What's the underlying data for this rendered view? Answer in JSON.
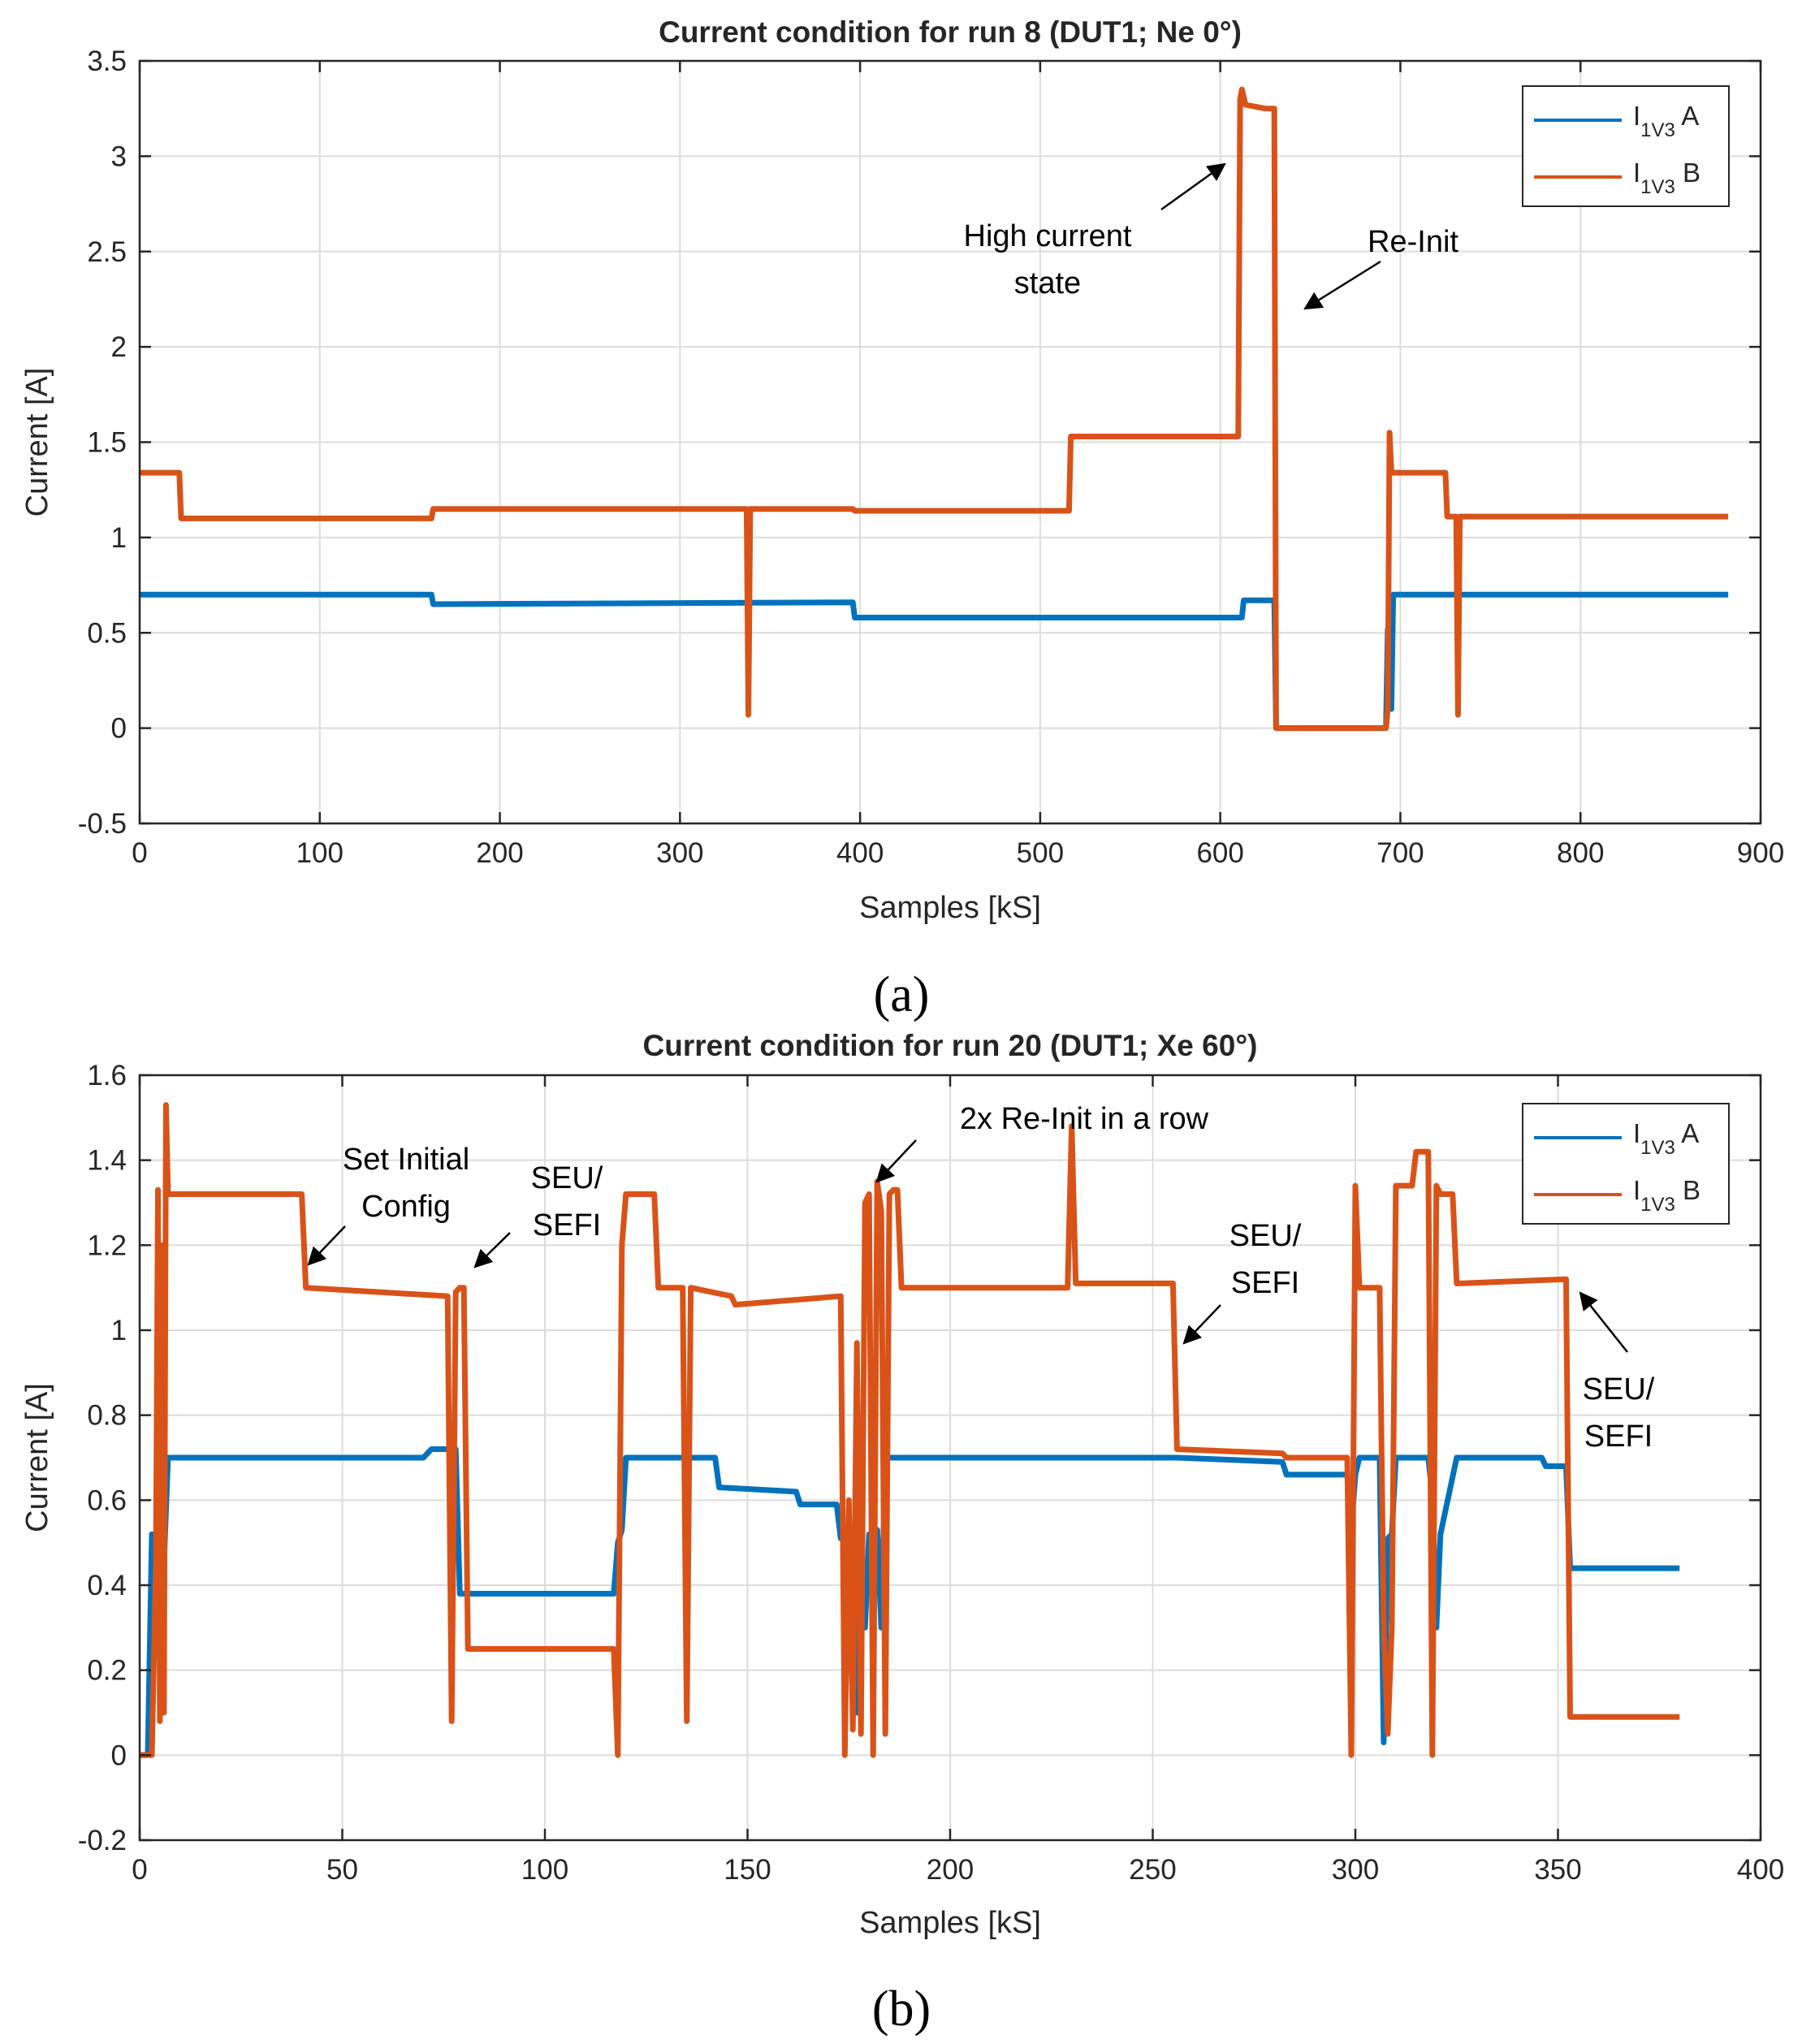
{
  "colors": {
    "series_a": "#0072BD",
    "series_b": "#D95319",
    "grid": "#dcdcdc",
    "axes": "#262626"
  },
  "chart_data": [
    {
      "panel_label": "(a)",
      "type": "line",
      "title": "Current condition for run 8 (DUT1; Ne 0°)",
      "xlabel": "Samples [kS]",
      "ylabel": "Current [A]",
      "xlim": [
        0,
        900
      ],
      "ylim": [
        -0.5,
        3.5
      ],
      "xticks": [
        0,
        100,
        200,
        300,
        400,
        500,
        600,
        700,
        800,
        900
      ],
      "yticks": [
        -0.5,
        0,
        0.5,
        1,
        1.5,
        2,
        2.5,
        3,
        3.5
      ],
      "ytick_labels": [
        "-0.5",
        "0",
        "0.5",
        "1",
        "1.5",
        "2",
        "2.5",
        "3",
        "3.5"
      ],
      "grid": true,
      "legend_position": "top-right",
      "series": [
        {
          "name": "I1V3 A",
          "legend_main": "I",
          "legend_sub": "1V3",
          "legend_suffix": " A",
          "color": "#0072BD",
          "x": [
            0,
            162,
            163,
            396,
            397,
            612,
            613,
            630,
            631,
            692,
            693,
            695,
            696,
            882
          ],
          "y": [
            0.7,
            0.7,
            0.65,
            0.66,
            0.58,
            0.58,
            0.67,
            0.67,
            0.0,
            0.0,
            0.52,
            0.1,
            0.7,
            0.7
          ]
        },
        {
          "name": "I1V3 B",
          "legend_main": "I",
          "legend_sub": "1V3",
          "legend_suffix": " B",
          "color": "#D95319",
          "x": [
            0,
            22,
            23,
            162,
            163,
            337,
            338,
            339,
            396,
            397,
            516,
            517,
            610,
            611,
            612,
            614,
            625,
            630,
            631,
            692,
            693,
            694,
            695,
            696,
            725,
            726,
            731,
            732,
            733,
            882
          ],
          "y": [
            1.34,
            1.34,
            1.1,
            1.1,
            1.15,
            1.15,
            0.07,
            1.15,
            1.15,
            1.14,
            1.14,
            1.53,
            1.53,
            3.3,
            3.35,
            3.27,
            3.25,
            3.25,
            0.0,
            0.0,
            0.1,
            1.55,
            1.34,
            1.34,
            1.34,
            1.11,
            1.11,
            0.07,
            1.11,
            1.11
          ]
        }
      ],
      "annotations": [
        {
          "lines": [
            "High current",
            "state"
          ]
        },
        {
          "lines": [
            "Re-Init"
          ]
        }
      ]
    },
    {
      "panel_label": "(b)",
      "type": "line",
      "title": "Current condition for run 20 (DUT1; Xe 60°)",
      "xlabel": "Samples [kS]",
      "ylabel": "Current [A]",
      "xlim": [
        0,
        400
      ],
      "ylim": [
        -0.2,
        1.6
      ],
      "xticks": [
        0,
        50,
        100,
        150,
        200,
        250,
        300,
        350,
        400
      ],
      "yticks": [
        -0.2,
        0,
        0.2,
        0.4,
        0.6,
        0.8,
        1,
        1.2,
        1.4,
        1.6
      ],
      "ytick_labels": [
        "-0.2",
        "0",
        "0.2",
        "0.4",
        "0.6",
        "0.8",
        "1",
        "1.2",
        "1.4",
        "1.6"
      ],
      "grid": true,
      "legend_position": "top-right",
      "series": [
        {
          "name": "I1V3 A",
          "legend_main": "I",
          "legend_sub": "1V3",
          "legend_suffix": " A",
          "color": "#0072BD",
          "x": [
            0,
            2,
            3,
            4,
            5,
            6,
            7,
            40,
            70,
            72,
            78,
            79,
            80,
            117,
            118,
            119,
            120,
            142,
            143,
            162,
            163,
            172,
            173,
            175,
            176,
            177,
            178,
            179,
            180,
            181,
            182,
            183,
            184,
            186,
            187,
            229,
            230,
            255,
            256,
            282,
            283,
            298,
            299,
            300,
            301,
            306,
            307,
            308,
            309,
            310,
            311,
            318,
            319,
            320,
            321,
            325,
            326,
            346,
            347,
            352,
            353,
            380
          ],
          "y": [
            0.0,
            0.0,
            0.52,
            0.3,
            0.52,
            0.45,
            0.7,
            0.7,
            0.7,
            0.72,
            0.72,
            0.38,
            0.38,
            0.38,
            0.5,
            0.53,
            0.7,
            0.7,
            0.63,
            0.62,
            0.59,
            0.59,
            0.51,
            0.51,
            0.3,
            0.1,
            0.52,
            0.3,
            0.52,
            0.52,
            0.53,
            0.3,
            0.7,
            0.7,
            0.7,
            0.7,
            0.7,
            0.7,
            0.7,
            0.69,
            0.66,
            0.66,
            0.53,
            0.66,
            0.7,
            0.7,
            0.03,
            0.51,
            0.52,
            0.7,
            0.7,
            0.7,
            0.61,
            0.3,
            0.52,
            0.7,
            0.7,
            0.7,
            0.68,
            0.68,
            0.44,
            0.44
          ]
        },
        {
          "name": "I1V3 B",
          "legend_main": "I",
          "legend_sub": "1V3",
          "legend_suffix": " B",
          "color": "#D95319",
          "x": [
            0,
            2,
            3,
            4,
            4.5,
            5,
            5.5,
            6,
            6.5,
            7,
            40,
            41,
            76,
            77,
            78,
            79,
            80,
            81,
            117,
            118,
            119,
            120,
            127,
            128,
            134,
            135,
            136,
            146,
            147,
            173,
            174,
            175,
            176,
            177,
            178,
            179,
            180,
            181,
            182,
            183,
            184,
            185,
            186,
            187,
            188,
            229,
            230,
            231,
            255,
            256,
            282,
            283,
            298,
            299,
            300,
            301,
            306,
            307,
            308,
            309,
            310,
            311,
            314,
            315,
            318,
            319,
            320,
            321,
            324,
            325,
            326,
            352,
            353,
            380
          ],
          "y": [
            0.0,
            0.0,
            0.0,
            0.45,
            1.33,
            0.08,
            1.2,
            0.1,
            1.53,
            1.32,
            1.32,
            1.1,
            1.08,
            0.08,
            1.09,
            1.1,
            1.1,
            0.25,
            0.25,
            0.0,
            1.2,
            1.32,
            1.32,
            1.1,
            1.1,
            0.08,
            1.1,
            1.08,
            1.06,
            1.08,
            0.0,
            0.6,
            0.06,
            0.97,
            0.05,
            1.3,
            1.32,
            0.0,
            1.35,
            1.28,
            0.05,
            1.32,
            1.33,
            1.33,
            1.1,
            1.1,
            1.48,
            1.11,
            1.11,
            0.72,
            0.71,
            0.7,
            0.7,
            0.0,
            1.34,
            1.1,
            1.1,
            0.3,
            0.05,
            0.3,
            1.34,
            1.34,
            1.34,
            1.42,
            1.42,
            0.0,
            1.34,
            1.32,
            1.32,
            1.11,
            1.11,
            1.12,
            0.09,
            0.09
          ]
        }
      ],
      "annotations": [
        {
          "lines": [
            "Set Initial",
            "Config"
          ]
        },
        {
          "lines": [
            "SEU/",
            "SEFI"
          ]
        },
        {
          "lines": [
            "2x Re-Init in a row"
          ]
        },
        {
          "lines": [
            "SEU/",
            "SEFI"
          ]
        },
        {
          "lines": [
            "SEU/",
            "SEFI"
          ]
        }
      ]
    }
  ]
}
